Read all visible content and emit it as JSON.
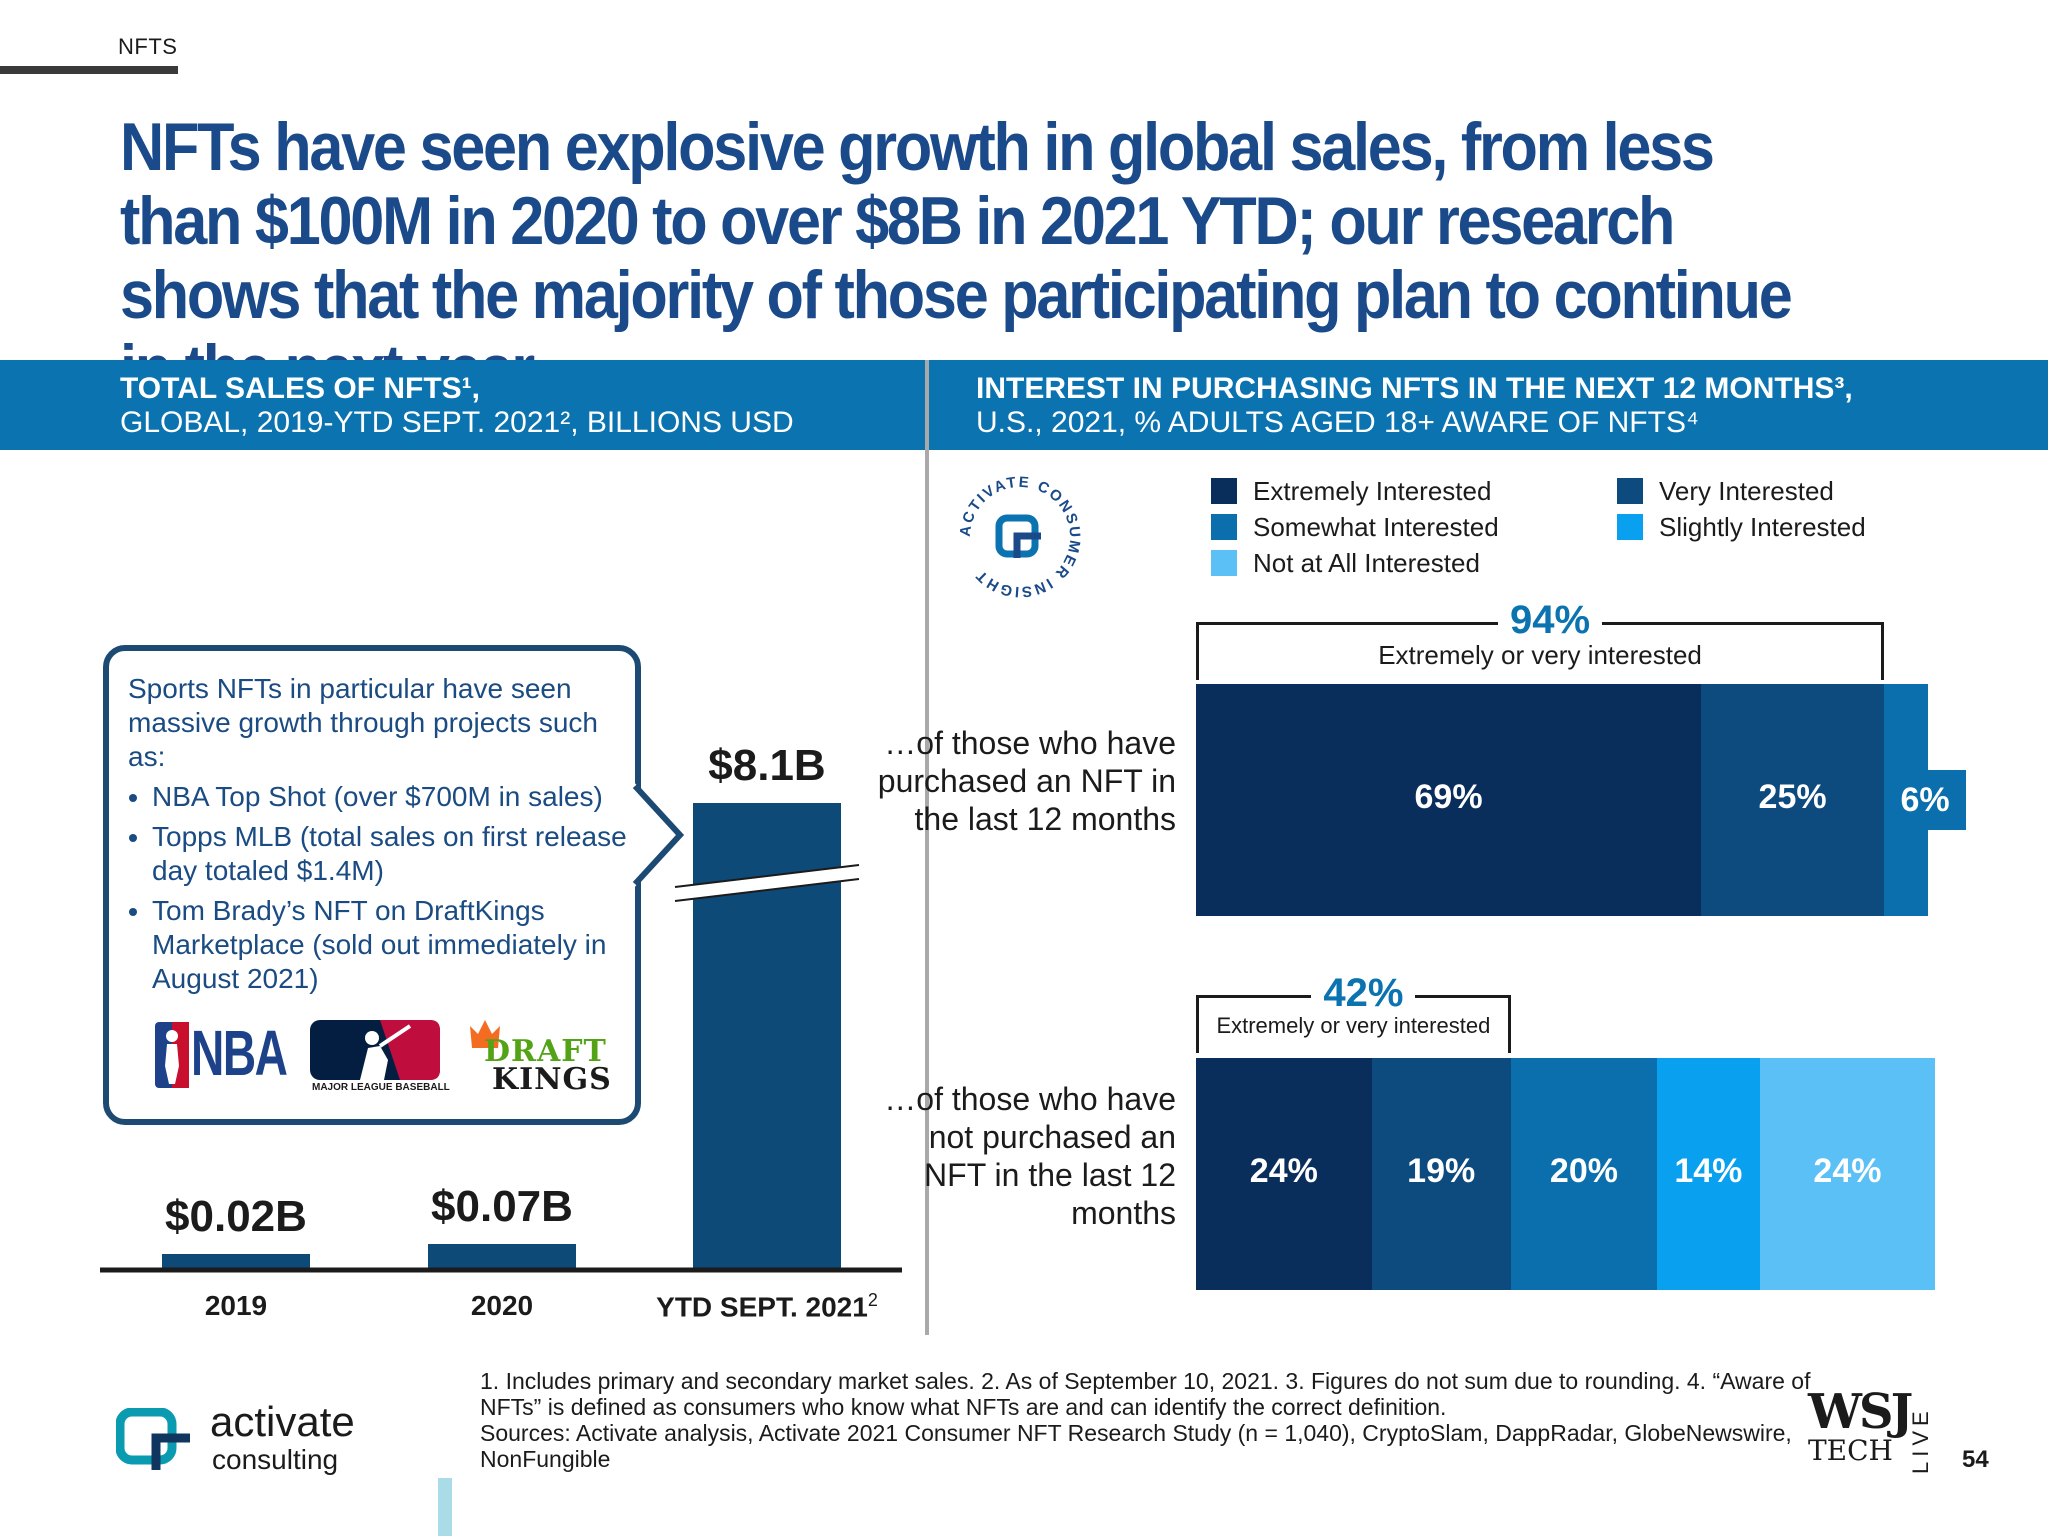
{
  "section_tag": "NFTS",
  "headline": "NFTs have seen explosive growth in global sales, from less than $100M in 2020 to over $8B in 2021 YTD; our research shows that the majority of those participating plan to continue in the next year",
  "left_header": {
    "line1": "TOTAL SALES OF NFTS¹,",
    "line2": "GLOBAL, 2019-YTD SEPT. 2021², BILLIONS USD"
  },
  "right_header": {
    "line1": "INTEREST IN PURCHASING NFTS IN THE NEXT 12 MONTHS³,",
    "line2": "U.S., 2021, % ADULTS AGED 18+ AWARE OF NFTS⁴"
  },
  "callout": {
    "intro": "Sports NFTs in particular have seen massive growth through projects such as:",
    "bullets": [
      "NBA Top Shot (over $700M in sales)",
      "Topps MLB (total sales on first release day totaled $1.4M)",
      "Tom Brady’s NFT on DraftKings Marketplace (sold out immediately in August 2021)"
    ],
    "logos": {
      "nba": "NBA",
      "mlb": "MAJOR LEAGUE BASEBALL",
      "draftkings_line1": "DRAFT",
      "draftkings_line2": "KINGS"
    }
  },
  "badge": {
    "text": "ACTIVATE CONSUMER INSIGHT"
  },
  "chart_data": [
    {
      "type": "bar",
      "categories": [
        "2019",
        "2020",
        "YTD SEPT. 2021"
      ],
      "category_superscripts": [
        "",
        "",
        "2"
      ],
      "values": [
        0.02,
        0.07,
        8.1
      ],
      "data_labels": [
        "$0.02B",
        "$0.07B",
        "$8.1B"
      ],
      "axis_break": true,
      "color": "#0d4a78"
    },
    {
      "type": "bar",
      "orientation": "horizontal",
      "stacked": true,
      "legend": [
        {
          "name": "Extremely Interested",
          "color": "#0a2e5c"
        },
        {
          "name": "Very Interested",
          "color": "#0d4a7e"
        },
        {
          "name": "Somewhat Interested",
          "color": "#0b6fae"
        },
        {
          "name": "Slightly Interested",
          "color": "#0aa0f0"
        },
        {
          "name": "Not at All Interested",
          "color": "#5bc0f5"
        }
      ],
      "rows": [
        {
          "label": "…of those who have purchased an NFT in the last 12 months",
          "segments": [
            {
              "name": "Extremely Interested",
              "value": 69,
              "label": "69%"
            },
            {
              "name": "Very Interested",
              "value": 25,
              "label": "25%"
            },
            {
              "name": "Somewhat Interested",
              "value": 6,
              "label": "6%"
            }
          ],
          "bracket_value": "94%",
          "bracket_label": "Extremely or very interested"
        },
        {
          "label": "…of those who have not purchased an NFT in the last 12 months",
          "segments": [
            {
              "name": "Extremely Interested",
              "value": 24,
              "label": "24%"
            },
            {
              "name": "Very Interested",
              "value": 19,
              "label": "19%"
            },
            {
              "name": "Somewhat Interested",
              "value": 20,
              "label": "20%"
            },
            {
              "name": "Slightly Interested",
              "value": 14,
              "label": "14%"
            },
            {
              "name": "Not at All Interested",
              "value": 24,
              "label": "24%"
            }
          ],
          "bracket_value": "42%",
          "bracket_label": "Extremely or very interested"
        }
      ]
    }
  ],
  "footnote": {
    "line1": "1. Includes primary and secondary market sales.  2. As of September 10, 2021.  3. Figures do not sum due to rounding.  4. “Aware of NFTs” is defined as consumers who know what NFTs are and can identify the correct definition.",
    "line2": "Sources: Activate analysis, Activate 2021 Consumer NFT Research Study (n = 1,040), CryptoSlam, DappRadar, GlobeNewswire, NonFungible"
  },
  "brand": {
    "name": "activate",
    "sub": "consulting"
  },
  "wsj": {
    "line1": "WSJ",
    "line2": "TECH",
    "side": "LIVE"
  },
  "page_number": "54"
}
